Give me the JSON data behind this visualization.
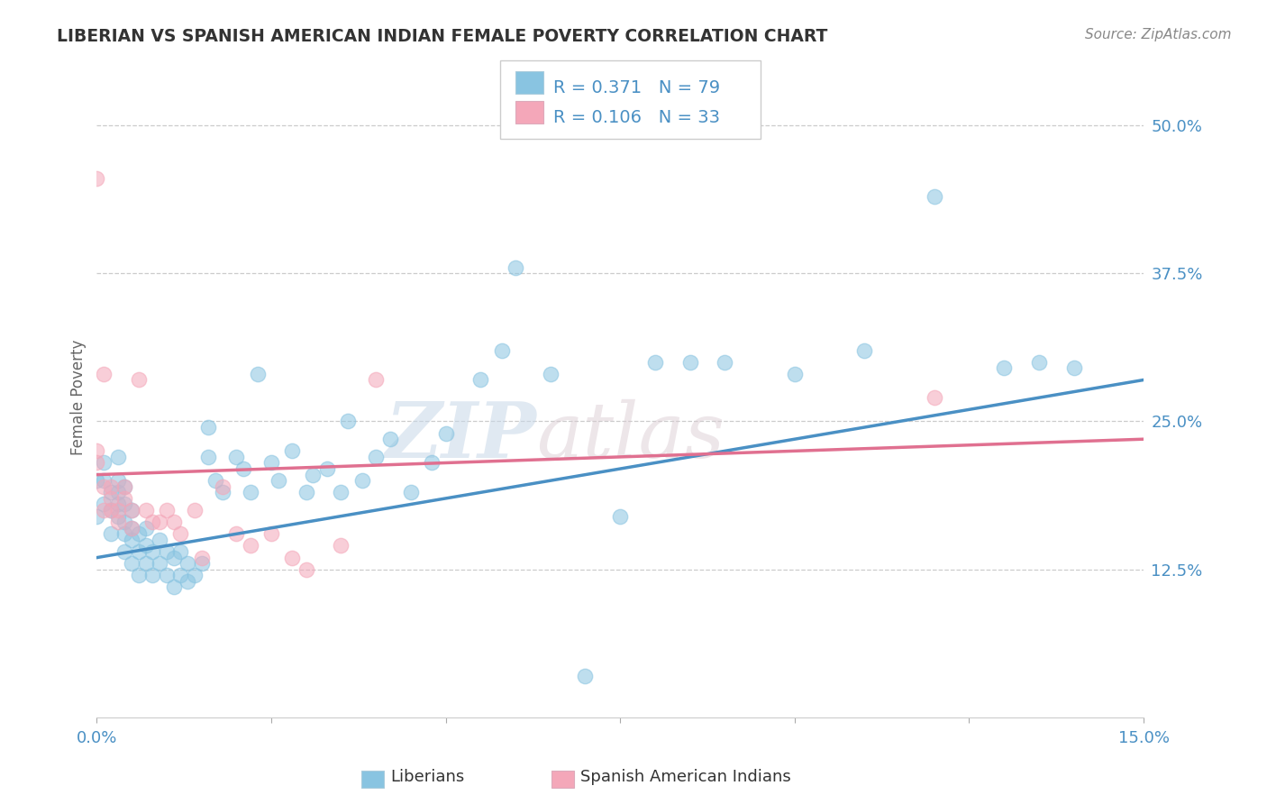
{
  "title": "LIBERIAN VS SPANISH AMERICAN INDIAN FEMALE POVERTY CORRELATION CHART",
  "source": "Source: ZipAtlas.com",
  "ylabel": "Female Poverty",
  "xlim": [
    0.0,
    0.15
  ],
  "ylim": [
    0.0,
    0.54
  ],
  "xticks": [
    0.0,
    0.025,
    0.05,
    0.075,
    0.1,
    0.125,
    0.15
  ],
  "xticklabels": [
    "0.0%",
    "",
    "",
    "",
    "",
    "",
    "15.0%"
  ],
  "yticks_right": [
    0.125,
    0.25,
    0.375,
    0.5
  ],
  "yticklabels_right": [
    "12.5%",
    "25.0%",
    "37.5%",
    "50.0%"
  ],
  "blue_color": "#89c4e1",
  "pink_color": "#f4a7b9",
  "blue_line_color": "#4a90c4",
  "pink_line_color": "#e07090",
  "R_blue": 0.371,
  "N_blue": 79,
  "R_pink": 0.106,
  "N_pink": 33,
  "legend_blue_label": "Liberians",
  "legend_pink_label": "Spanish American Indians",
  "watermark_zip": "ZIP",
  "watermark_atlas": "atlas",
  "blue_scatter_x": [
    0.0,
    0.0,
    0.001,
    0.001,
    0.001,
    0.002,
    0.002,
    0.002,
    0.003,
    0.003,
    0.003,
    0.003,
    0.003,
    0.004,
    0.004,
    0.004,
    0.004,
    0.004,
    0.005,
    0.005,
    0.005,
    0.005,
    0.006,
    0.006,
    0.006,
    0.007,
    0.007,
    0.007,
    0.008,
    0.008,
    0.009,
    0.009,
    0.01,
    0.01,
    0.011,
    0.011,
    0.012,
    0.012,
    0.013,
    0.013,
    0.014,
    0.015,
    0.016,
    0.016,
    0.017,
    0.018,
    0.02,
    0.021,
    0.022,
    0.023,
    0.025,
    0.026,
    0.028,
    0.03,
    0.031,
    0.033,
    0.035,
    0.036,
    0.038,
    0.04,
    0.042,
    0.045,
    0.048,
    0.05,
    0.055,
    0.058,
    0.06,
    0.065,
    0.07,
    0.075,
    0.08,
    0.085,
    0.09,
    0.1,
    0.11,
    0.12,
    0.13,
    0.135,
    0.14
  ],
  "blue_scatter_y": [
    0.17,
    0.2,
    0.18,
    0.2,
    0.215,
    0.155,
    0.175,
    0.19,
    0.17,
    0.18,
    0.19,
    0.2,
    0.22,
    0.14,
    0.155,
    0.165,
    0.18,
    0.195,
    0.13,
    0.15,
    0.16,
    0.175,
    0.12,
    0.14,
    0.155,
    0.13,
    0.145,
    0.16,
    0.12,
    0.14,
    0.13,
    0.15,
    0.12,
    0.14,
    0.11,
    0.135,
    0.12,
    0.14,
    0.115,
    0.13,
    0.12,
    0.13,
    0.22,
    0.245,
    0.2,
    0.19,
    0.22,
    0.21,
    0.19,
    0.29,
    0.215,
    0.2,
    0.225,
    0.19,
    0.205,
    0.21,
    0.19,
    0.25,
    0.2,
    0.22,
    0.235,
    0.19,
    0.215,
    0.24,
    0.285,
    0.31,
    0.38,
    0.29,
    0.035,
    0.17,
    0.3,
    0.3,
    0.3,
    0.29,
    0.31,
    0.44,
    0.295,
    0.3,
    0.295
  ],
  "pink_scatter_x": [
    0.0,
    0.0,
    0.0,
    0.001,
    0.001,
    0.001,
    0.002,
    0.002,
    0.002,
    0.003,
    0.003,
    0.004,
    0.004,
    0.005,
    0.005,
    0.006,
    0.007,
    0.008,
    0.009,
    0.01,
    0.011,
    0.012,
    0.014,
    0.015,
    0.018,
    0.02,
    0.022,
    0.025,
    0.028,
    0.03,
    0.035,
    0.04,
    0.12
  ],
  "pink_scatter_y": [
    0.215,
    0.225,
    0.455,
    0.175,
    0.195,
    0.29,
    0.175,
    0.185,
    0.195,
    0.165,
    0.175,
    0.185,
    0.195,
    0.16,
    0.175,
    0.285,
    0.175,
    0.165,
    0.165,
    0.175,
    0.165,
    0.155,
    0.175,
    0.135,
    0.195,
    0.155,
    0.145,
    0.155,
    0.135,
    0.125,
    0.145,
    0.285,
    0.27
  ],
  "blue_line_x0": 0.0,
  "blue_line_y0": 0.135,
  "blue_line_x1": 0.15,
  "blue_line_y1": 0.285,
  "pink_line_x0": 0.0,
  "pink_line_y0": 0.205,
  "pink_line_x1": 0.15,
  "pink_line_y1": 0.235
}
